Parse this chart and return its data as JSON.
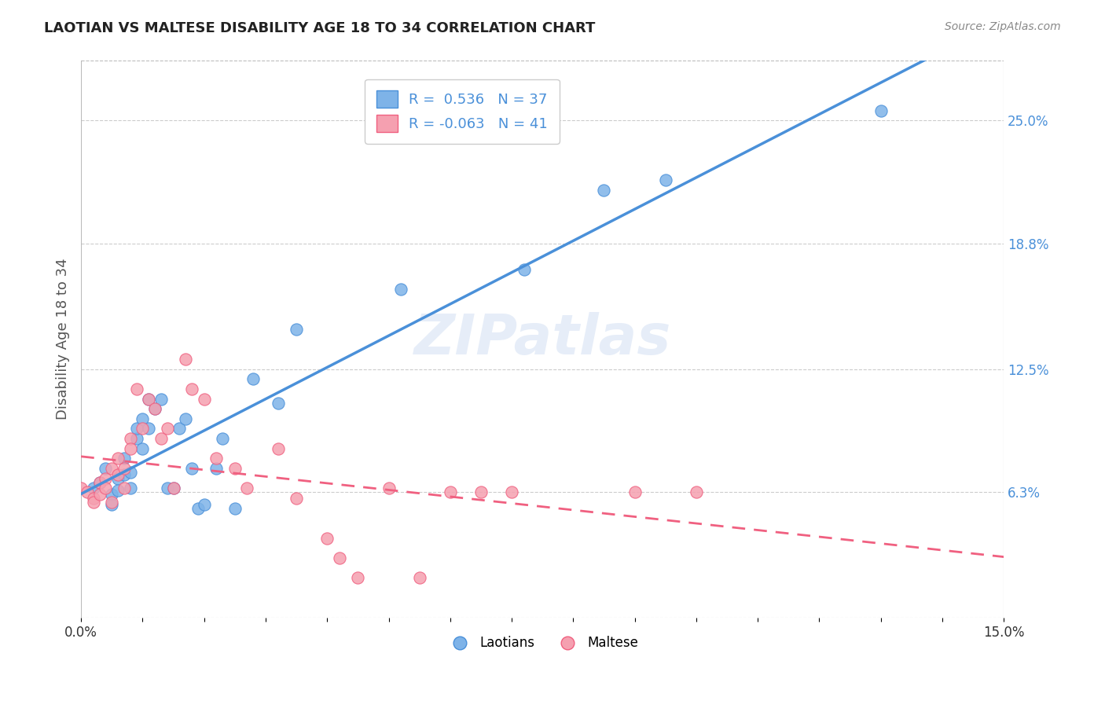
{
  "title": "LAOTIAN VS MALTESE DISABILITY AGE 18 TO 34 CORRELATION CHART",
  "source": "Source: ZipAtlas.com",
  "xlabel": "",
  "ylabel": "Disability Age 18 to 34",
  "xlim": [
    0.0,
    0.15
  ],
  "ylim": [
    0.0,
    0.28
  ],
  "xtick_labels": [
    "0.0%",
    "",
    "",
    "",
    "",
    "",
    "",
    "",
    "",
    "",
    "",
    "",
    "",
    "",
    "",
    "15.0%"
  ],
  "ytick_right_labels": [
    "6.3%",
    "12.5%",
    "18.8%",
    "25.0%"
  ],
  "ytick_right_values": [
    0.063,
    0.125,
    0.188,
    0.25
  ],
  "laotian_color": "#7eb3e8",
  "maltese_color": "#f5a0b0",
  "laotian_line_color": "#4a90d9",
  "maltese_line_color": "#f06080",
  "maltese_line_dash": [
    6,
    4
  ],
  "R_laotian": 0.536,
  "N_laotian": 37,
  "R_maltese": -0.063,
  "N_maltese": 41,
  "watermark": "ZIPatlas",
  "laotian_x": [
    0.002,
    0.003,
    0.004,
    0.005,
    0.005,
    0.006,
    0.006,
    0.007,
    0.007,
    0.008,
    0.008,
    0.009,
    0.009,
    0.01,
    0.01,
    0.011,
    0.011,
    0.012,
    0.013,
    0.014,
    0.015,
    0.016,
    0.017,
    0.018,
    0.019,
    0.02,
    0.022,
    0.023,
    0.025,
    0.028,
    0.032,
    0.035,
    0.052,
    0.072,
    0.085,
    0.095,
    0.13
  ],
  "laotian_y": [
    0.065,
    0.068,
    0.075,
    0.062,
    0.057,
    0.07,
    0.064,
    0.08,
    0.072,
    0.065,
    0.073,
    0.09,
    0.095,
    0.1,
    0.085,
    0.11,
    0.095,
    0.105,
    0.11,
    0.065,
    0.065,
    0.095,
    0.1,
    0.075,
    0.055,
    0.057,
    0.075,
    0.09,
    0.055,
    0.12,
    0.108,
    0.145,
    0.165,
    0.175,
    0.215,
    0.22,
    0.255
  ],
  "maltese_x": [
    0.0,
    0.001,
    0.002,
    0.002,
    0.003,
    0.003,
    0.004,
    0.004,
    0.005,
    0.005,
    0.006,
    0.006,
    0.007,
    0.007,
    0.008,
    0.008,
    0.009,
    0.01,
    0.011,
    0.012,
    0.013,
    0.014,
    0.015,
    0.017,
    0.018,
    0.02,
    0.022,
    0.025,
    0.027,
    0.032,
    0.035,
    0.04,
    0.042,
    0.045,
    0.05,
    0.055,
    0.06,
    0.065,
    0.07,
    0.09,
    0.1
  ],
  "maltese_y": [
    0.065,
    0.063,
    0.06,
    0.058,
    0.068,
    0.062,
    0.07,
    0.065,
    0.075,
    0.058,
    0.08,
    0.072,
    0.075,
    0.065,
    0.09,
    0.085,
    0.115,
    0.095,
    0.11,
    0.105,
    0.09,
    0.095,
    0.065,
    0.13,
    0.115,
    0.11,
    0.08,
    0.075,
    0.065,
    0.085,
    0.06,
    0.04,
    0.03,
    0.02,
    0.065,
    0.02,
    0.063,
    0.063,
    0.063,
    0.063,
    0.063
  ]
}
